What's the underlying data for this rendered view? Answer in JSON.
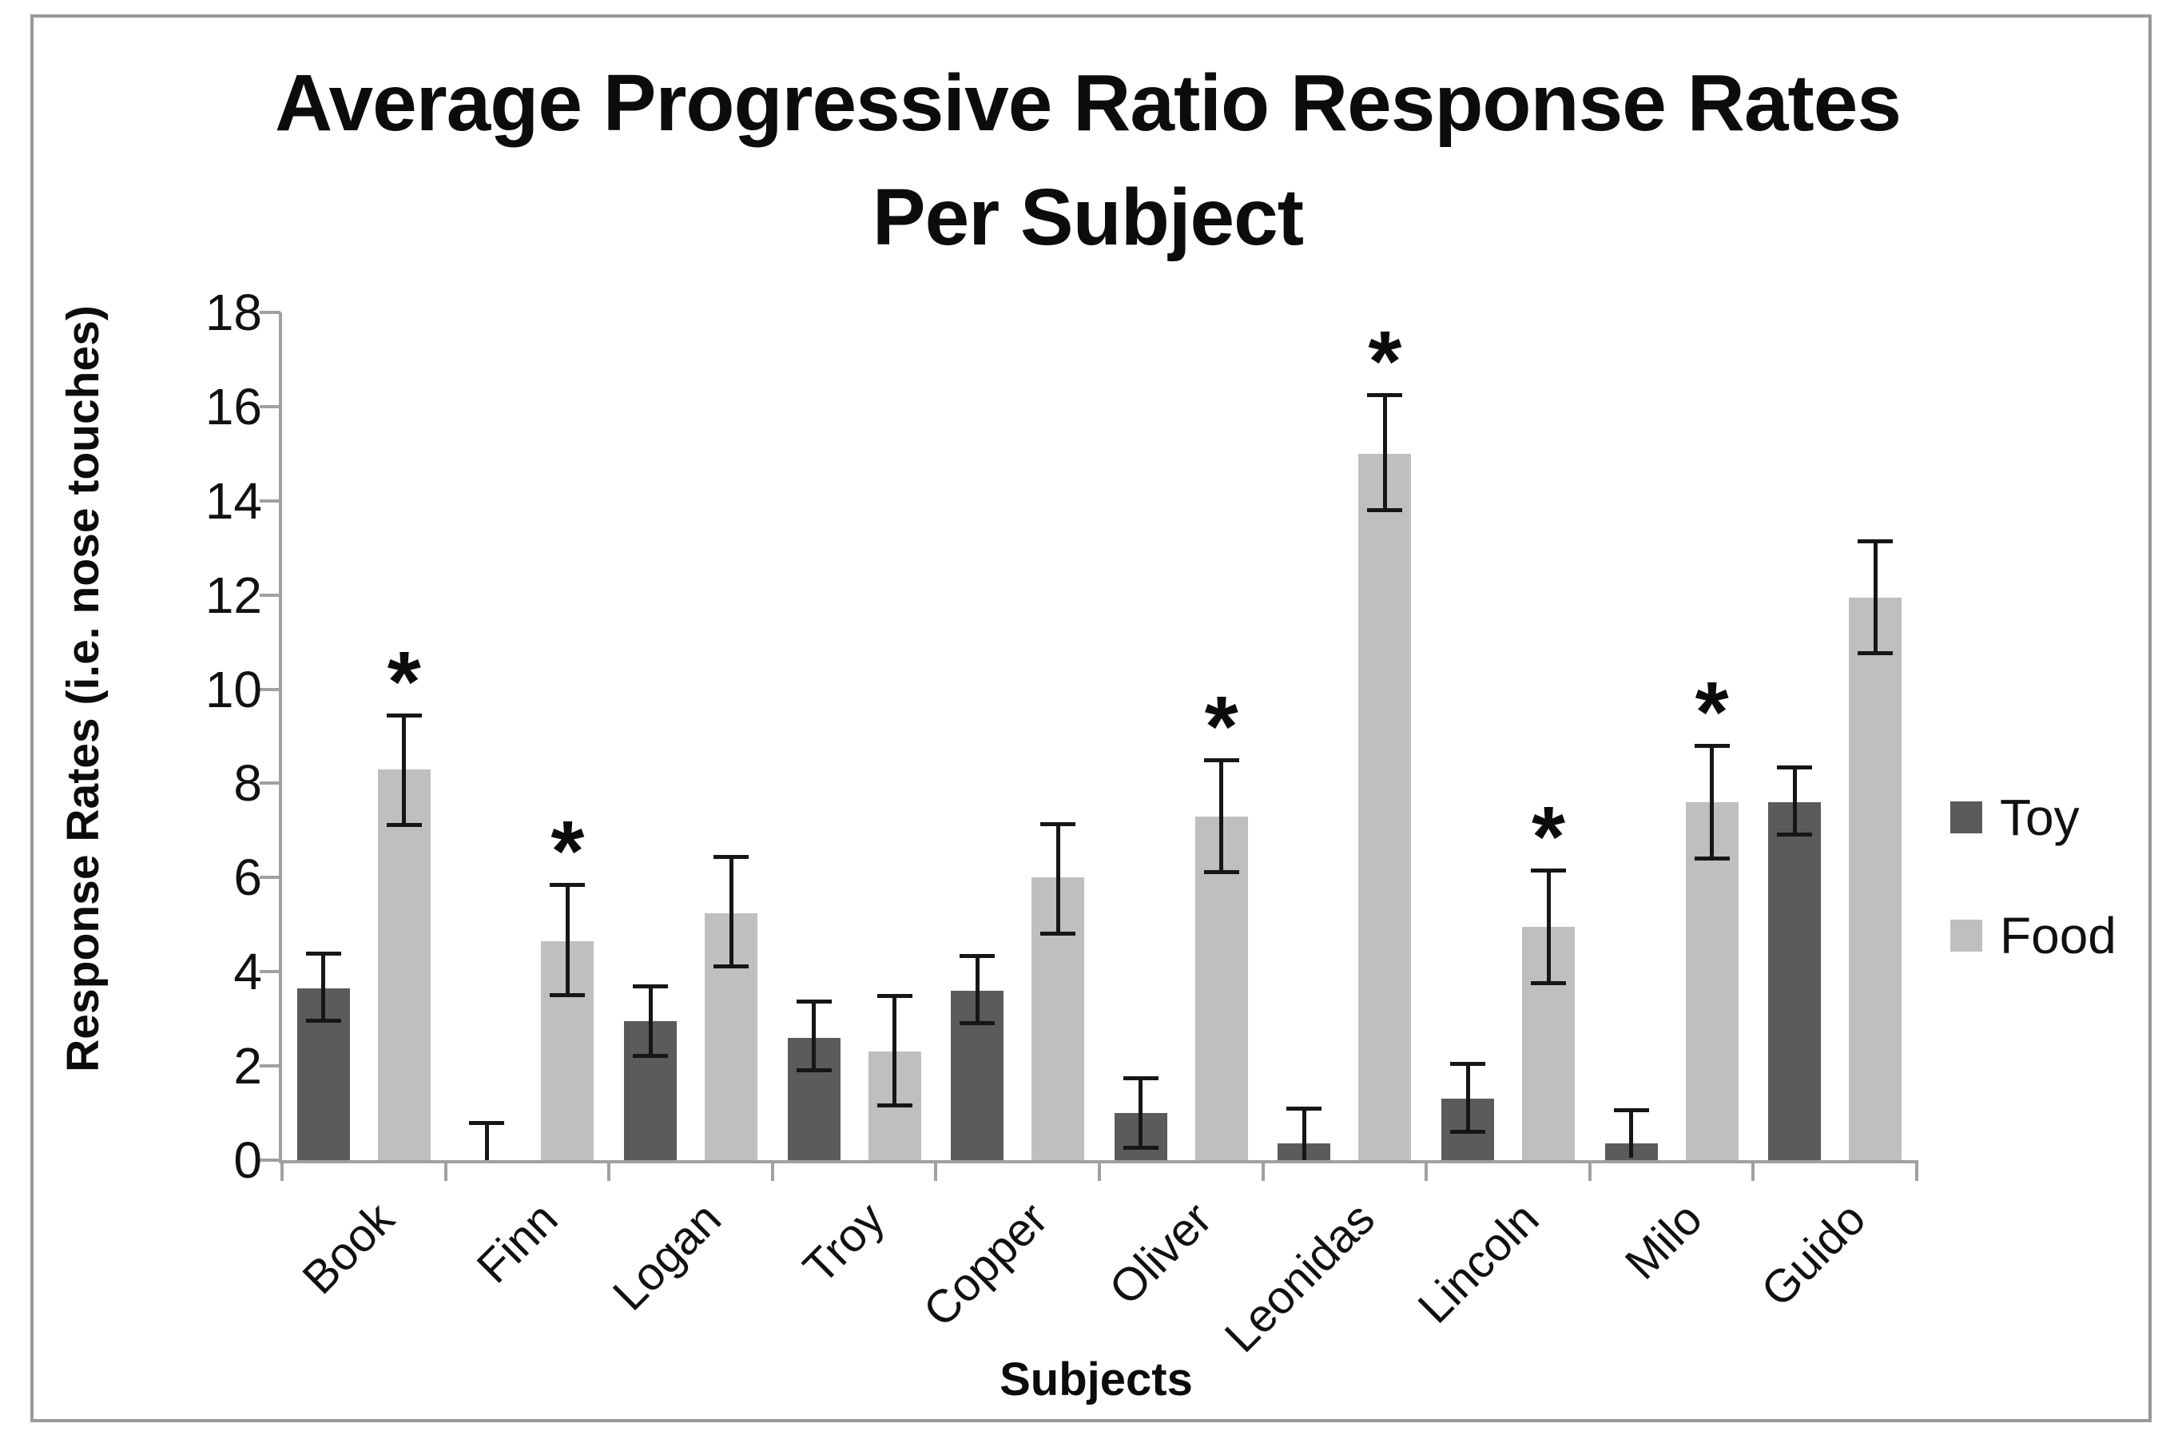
{
  "figure": {
    "title_line1": "Average Progressive Ratio Response Rates",
    "title_line2": "Per Subject",
    "y_axis_title": "Response Rates (i.e. nose touches)",
    "x_axis_title": "Subjects"
  },
  "colors": {
    "toy_bar": "#5b5b5b",
    "food_bar": "#bfbfbf",
    "axis": "#a0a0a0",
    "error_bar": "#161616",
    "text": "#111111"
  },
  "chart_data": {
    "type": "bar",
    "title": "Average Progressive Ratio Response Rates Per Subject",
    "xlabel": "Subjects",
    "ylabel": "Response Rates (i.e. nose touches)",
    "ylim": [
      0,
      18
    ],
    "yticks": [
      0,
      2,
      4,
      6,
      8,
      10,
      12,
      14,
      16,
      18
    ],
    "grid": false,
    "legend_position": "right",
    "significance_marker": "*",
    "categories": [
      "Book",
      "Finn",
      "Logan",
      "Troy",
      "Copper",
      "Oliver",
      "Leonidas",
      "Lincoln",
      "Milo",
      "Guido"
    ],
    "series": [
      {
        "name": "Toy",
        "color": "#5b5b5b",
        "values": [
          3.65,
          0,
          2.95,
          2.6,
          3.6,
          1.0,
          0.35,
          1.3,
          0.35,
          7.6
        ],
        "err_low": [
          0.7,
          0,
          0.75,
          0.7,
          0.7,
          0.75,
          0.75,
          0.7,
          0.3,
          0.7
        ],
        "err_high": [
          0.75,
          0.8,
          0.75,
          0.78,
          0.75,
          0.75,
          0.75,
          0.75,
          0.72,
          0.75
        ],
        "significant": [
          false,
          false,
          false,
          false,
          false,
          false,
          false,
          false,
          false,
          false
        ]
      },
      {
        "name": "Food",
        "color": "#bfbfbf",
        "values": [
          8.3,
          4.65,
          5.25,
          2.3,
          6.0,
          7.3,
          15.0,
          4.95,
          7.6,
          11.95
        ],
        "err_low": [
          1.2,
          1.15,
          1.15,
          1.15,
          1.2,
          1.2,
          1.2,
          1.2,
          1.2,
          1.2
        ],
        "err_high": [
          1.15,
          1.2,
          1.2,
          1.2,
          1.15,
          1.2,
          1.25,
          1.2,
          1.2,
          1.2
        ],
        "significant": [
          true,
          true,
          false,
          false,
          false,
          true,
          true,
          true,
          true,
          false
        ]
      }
    ]
  }
}
